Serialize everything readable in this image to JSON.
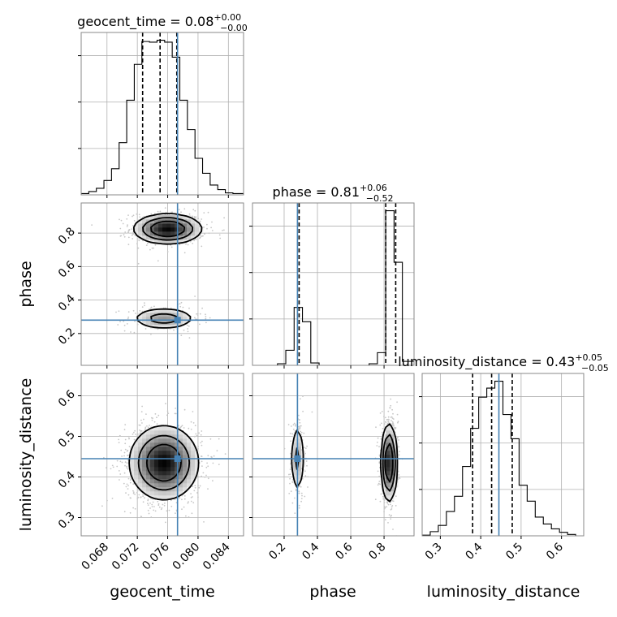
{
  "colors": {
    "truth": "#4682b4",
    "contour": "#000000",
    "quantile": "#000000",
    "grid": "#b0b0b0",
    "scatter": "#c7c7c7"
  },
  "chart_data": {
    "type": "corner",
    "params": [
      {
        "name": "geocent_time",
        "axis_label": "geocent_time",
        "title": {
          "main": "geocent_time = 0.08",
          "sup": "+0.00",
          "sub": "−0.00"
        },
        "range": [
          0.0646,
          0.086
        ],
        "ticks": [
          0.068,
          0.072,
          0.076,
          0.08,
          0.084
        ],
        "tick_labels": [
          "0.068",
          "0.072",
          "0.076",
          "0.080",
          "0.084"
        ],
        "truth": 0.0773,
        "quantiles": [
          0.0727,
          0.075,
          0.0772
        ],
        "hist_edges": [
          0.0646,
          0.0656,
          0.0666,
          0.0676,
          0.0686,
          0.0696,
          0.0706,
          0.0716,
          0.0726,
          0.0736,
          0.0746,
          0.0756,
          0.0766,
          0.0776,
          0.0786,
          0.0796,
          0.0806,
          0.0816,
          0.0826,
          0.0836,
          0.0846,
          0.086
        ],
        "hist_counts": [
          2,
          5,
          10,
          22,
          40,
          80,
          145,
          200,
          235,
          234,
          237,
          234,
          211,
          145,
          100,
          56,
          33,
          15,
          8,
          3,
          2
        ]
      },
      {
        "name": "phase",
        "axis_label": "phase",
        "title": {
          "main": "phase = 0.81",
          "sup": "+0.06",
          "sub": "−0.52"
        },
        "range": [
          0.01,
          0.98
        ],
        "ticks": [
          0.2,
          0.4,
          0.6,
          0.8
        ],
        "tick_labels": [
          "0.2",
          "0.4",
          "0.6",
          "0.8"
        ],
        "truth": 0.28,
        "quantiles": [
          0.29,
          0.81,
          0.87
        ],
        "hist_edges": [
          0.01,
          0.06,
          0.11,
          0.16,
          0.21,
          0.26,
          0.31,
          0.36,
          0.41,
          0.46,
          0.51,
          0.56,
          0.61,
          0.66,
          0.71,
          0.76,
          0.81,
          0.86,
          0.91,
          0.98
        ],
        "hist_counts": [
          0,
          0,
          0,
          2,
          19,
          73,
          55,
          3,
          0,
          0,
          0,
          0,
          0,
          0,
          2,
          16,
          195,
          130,
          5
        ]
      },
      {
        "name": "luminosity_distance",
        "axis_label": "luminosity_distance",
        "title": {
          "main": "luminosity_distance = 0.43",
          "sup": "+0.05",
          "sub": "−0.05"
        },
        "range": [
          0.255,
          0.655
        ],
        "ticks": [
          0.3,
          0.4,
          0.5,
          0.6
        ],
        "tick_labels": [
          "0.3",
          "0.4",
          "0.5",
          "0.6"
        ],
        "truth": 0.445,
        "quantiles": [
          0.38,
          0.427,
          0.478
        ],
        "hist_edges": [
          0.255,
          0.275,
          0.295,
          0.315,
          0.335,
          0.355,
          0.375,
          0.395,
          0.415,
          0.435,
          0.455,
          0.475,
          0.495,
          0.515,
          0.535,
          0.555,
          0.575,
          0.595,
          0.615,
          0.635,
          0.655
        ],
        "hist_counts": [
          1,
          6,
          15,
          35,
          57,
          100,
          155,
          200,
          213,
          223,
          175,
          140,
          73,
          50,
          27,
          17,
          10,
          5,
          2,
          0
        ]
      }
    ],
    "ylims_2d": {
      "phase": [
        0.01,
        0.98
      ],
      "luminosity_distance": [
        0.255,
        0.655
      ]
    },
    "y_ticks_2d": {
      "phase": {
        "ticks": [
          0.2,
          0.4,
          0.6,
          0.8
        ],
        "labels": [
          "0.2",
          "0.4",
          "0.6",
          "0.8"
        ]
      },
      "luminosity_distance": {
        "ticks": [
          0.3,
          0.4,
          0.5,
          0.6
        ],
        "labels": [
          "0.3",
          "0.4",
          "0.5",
          "0.6"
        ]
      }
    },
    "modes": {
      "phase_vs_time": [
        {
          "cx": 0.076,
          "cy": 0.825,
          "sx": 0.00225,
          "sy": 0.045,
          "weight": 0.73
        },
        {
          "cx": 0.0755,
          "cy": 0.29,
          "sx": 0.00225,
          "sy": 0.035,
          "weight": 0.27
        }
      ],
      "dist_vs_time": [
        {
          "cx": 0.0755,
          "cy": 0.435,
          "sx": 0.0023,
          "sy": 0.046,
          "weight": 1.0
        }
      ],
      "dist_vs_phase": [
        {
          "cx": 0.28,
          "cy": 0.445,
          "sx": 0.022,
          "sy": 0.048,
          "weight": 0.27
        },
        {
          "cx": 0.83,
          "cy": 0.435,
          "sx": 0.024,
          "sy": 0.048,
          "weight": 0.73
        }
      ]
    },
    "grid": true
  }
}
